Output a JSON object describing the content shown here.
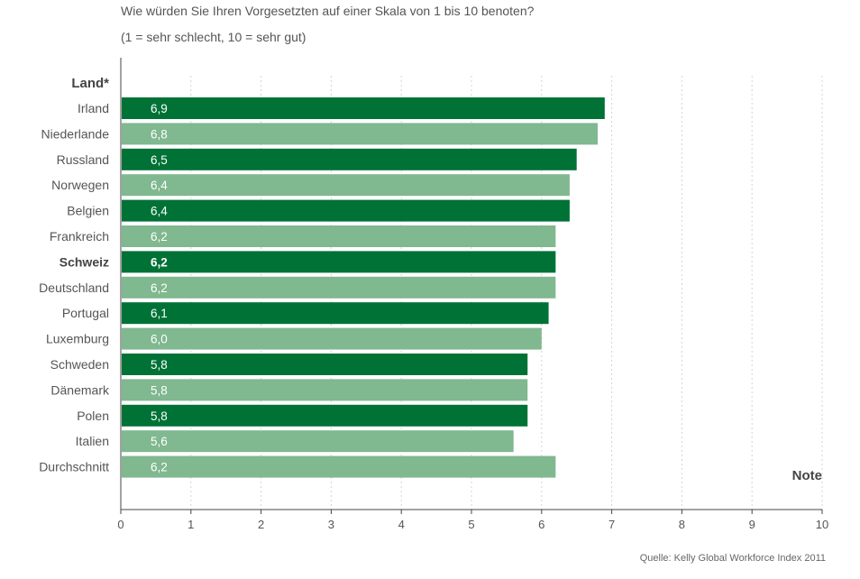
{
  "chart_data": {
    "type": "bar",
    "orientation": "horizontal",
    "title": "Wie würden Sie Ihren Vorgesetzten auf einer Skala von 1 bis 10 benoten?",
    "subtitle": "(1 = sehr schlecht, 10 = sehr gut)",
    "ylabel": "Land*",
    "xlabel": "Note",
    "xlim": [
      0,
      10
    ],
    "xticks": [
      "0",
      "1",
      "2",
      "3",
      "4",
      "5",
      "6",
      "7",
      "8",
      "9",
      "10"
    ],
    "grid": true,
    "categories": [
      "Irland",
      "Niederlande",
      "Russland",
      "Norwegen",
      "Belgien",
      "Frankreich",
      "Schweiz",
      "Deutschland",
      "Portugal",
      "Luxemburg",
      "Schweden",
      "Dänemark",
      "Polen",
      "Italien",
      "Durchschnitt"
    ],
    "values": [
      6.9,
      6.8,
      6.5,
      6.4,
      6.4,
      6.2,
      6.2,
      6.2,
      6.1,
      6.0,
      5.8,
      5.8,
      5.8,
      5.6,
      6.2
    ],
    "value_labels": [
      "6,9",
      "6,8",
      "6,5",
      "6,4",
      "6,4",
      "6,2",
      "6,2",
      "6,2",
      "6,1",
      "6,0",
      "5,8",
      "5,8",
      "5,8",
      "5,6",
      "6,2"
    ],
    "highlighted_category": "Schweiz",
    "source": "Quelle: Kelly Global Workforce Index 2011"
  },
  "colors": {
    "bar_dark": "#007236",
    "bar_light": "#80b88f",
    "text": "#555555",
    "axis": "#444444",
    "grid": "#d4d4d4"
  }
}
